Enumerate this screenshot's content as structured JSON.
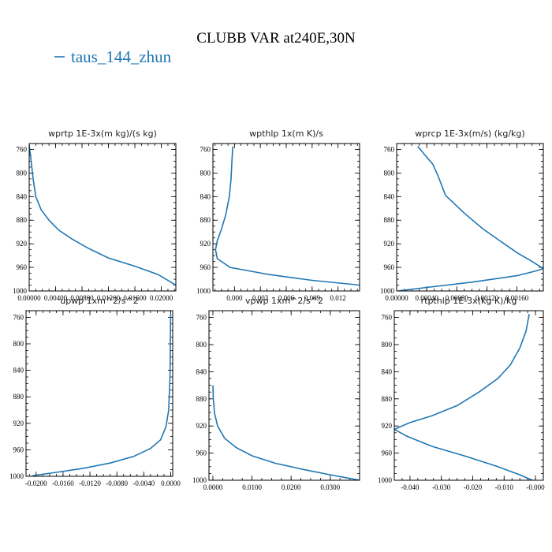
{
  "figure": {
    "title": "CLUBB VAR at240E,30N",
    "legend": [
      {
        "label": "taus_144_zhun",
        "color": "#1f77b4"
      }
    ]
  },
  "chart_data": [
    {
      "type": "line",
      "title": "wprtp  1E-3x(m kg)/(s kg)",
      "xlim": [
        0,
        0.0222
      ],
      "ylim": [
        1000,
        750
      ],
      "xticks": [
        0,
        0.004,
        0.008,
        0.012,
        0.016,
        0.02
      ],
      "xticklabels": [
        "0.00000",
        "0.00400",
        "0.00800",
        "0.01200",
        "0.01600",
        "0.02000"
      ],
      "yticks": [
        760,
        800,
        840,
        880,
        920,
        960,
        1000
      ],
      "yticklabels": [
        "760",
        "800",
        "840",
        "880",
        "920",
        "960",
        "1000"
      ],
      "series": [
        {
          "color": "#1f77b4",
          "x": [
            0.0,
            0.0003,
            0.0006,
            0.001,
            0.0018,
            0.003,
            0.0045,
            0.0065,
            0.009,
            0.012,
            0.016,
            0.0195,
            0.0222
          ],
          "y": [
            752,
            780,
            810,
            840,
            862,
            880,
            897,
            912,
            928,
            944,
            958,
            972,
            990
          ]
        }
      ]
    },
    {
      "type": "line",
      "title": "wpthlp  1x(m K)/s",
      "xlim": [
        -0.0025,
        0.0145
      ],
      "ylim": [
        1000,
        750
      ],
      "xticks": [
        0,
        0.003,
        0.006,
        0.009,
        0.012
      ],
      "xticklabels": [
        "0.000",
        "0.003",
        "0.006",
        "0.009",
        "0.012"
      ],
      "yticks": [
        760,
        800,
        840,
        880,
        920,
        960,
        1000
      ],
      "yticklabels": [
        "760",
        "800",
        "840",
        "880",
        "920",
        "960",
        "1000"
      ],
      "series": [
        {
          "color": "#1f77b4",
          "x": [
            -0.0002,
            -0.0003,
            -0.0004,
            -0.0006,
            -0.001,
            -0.0015,
            -0.002,
            -0.0022,
            -0.002,
            -0.0005,
            0.004,
            0.009,
            0.0145
          ],
          "y": [
            755,
            780,
            810,
            840,
            870,
            895,
            915,
            930,
            945,
            960,
            972,
            982,
            990
          ]
        }
      ]
    },
    {
      "type": "line",
      "title": "wprcp  1E-3x(m/s) (kg/kg)",
      "xlim": [
        0,
        0.00195
      ],
      "ylim": [
        1000,
        750
      ],
      "xticks": [
        0,
        0.0004,
        0.0008,
        0.0012,
        0.0016
      ],
      "xticklabels": [
        "0.00000",
        "0.00040",
        "0.00080",
        "0.00120",
        "0.00160"
      ],
      "yticks": [
        760,
        800,
        840,
        880,
        920,
        960,
        1000
      ],
      "yticklabels": [
        "760",
        "800",
        "840",
        "880",
        "920",
        "960",
        "1000"
      ],
      "series": [
        {
          "color": "#1f77b4",
          "x": [
            0.00028,
            0.00038,
            0.00048,
            0.00055,
            0.00065,
            0.0009,
            0.00115,
            0.00135,
            0.0016,
            0.0018,
            0.00195,
            0.00185,
            0.0016,
            0.001,
            0.0004,
            2e-05
          ],
          "y": [
            755,
            770,
            785,
            805,
            838,
            868,
            895,
            913,
            935,
            950,
            962,
            966,
            974,
            985,
            994,
            1000
          ]
        }
      ]
    },
    {
      "type": "line",
      "title": "upwp  1xm^2/s^2",
      "xlim": [
        -0.0215,
        0.0003
      ],
      "ylim": [
        1000,
        750
      ],
      "xticks": [
        -0.02,
        -0.016,
        -0.012,
        -0.008,
        -0.004,
        0
      ],
      "xticklabels": [
        "-0.0200",
        "-0.0160",
        "-0.0120",
        "-0.0080",
        "-0.0040",
        "0.0000"
      ],
      "yticks": [
        760,
        800,
        840,
        880,
        920,
        960,
        1000
      ],
      "yticklabels": [
        "760",
        "800",
        "840",
        "880",
        "920",
        "960",
        "1000"
      ],
      "series": [
        {
          "color": "#1f77b4",
          "x": [
            0.0,
            -5e-05,
            -0.0001,
            -0.0003,
            -0.0007,
            -0.0015,
            -0.003,
            -0.0055,
            -0.009,
            -0.013,
            -0.017,
            -0.0205
          ],
          "y": [
            755,
            800,
            850,
            900,
            925,
            945,
            958,
            970,
            980,
            988,
            994,
            999
          ]
        }
      ]
    },
    {
      "type": "line",
      "title": "vpwp  1xm^2/s^2",
      "xlim": [
        -0.001,
        0.0375
      ],
      "ylim": [
        1000,
        750
      ],
      "xticks": [
        0,
        0.01,
        0.02,
        0.03
      ],
      "xticklabels": [
        "0.0000",
        "0.0100",
        "0.0200",
        "0.0300"
      ],
      "yticks": [
        760,
        800,
        840,
        880,
        920,
        960,
        1000
      ],
      "yticklabels": [
        "760",
        "800",
        "840",
        "880",
        "920",
        "960",
        "1000"
      ],
      "series": [
        {
          "color": "#1f77b4",
          "x": [
            0.0,
            0.0001,
            0.0004,
            0.0012,
            0.003,
            0.006,
            0.01,
            0.016,
            0.023,
            0.03,
            0.0375
          ],
          "y": [
            860,
            880,
            900,
            920,
            938,
            952,
            964,
            975,
            984,
            992,
            1000
          ]
        }
      ]
    },
    {
      "type": "line",
      "title": "rtpthlp  1E-3x(kg K)/kg",
      "xlim": [
        -0.045,
        0.0025
      ],
      "ylim": [
        1000,
        750
      ],
      "xticks": [
        -0.04,
        -0.03,
        -0.02,
        -0.01,
        0
      ],
      "xticklabels": [
        "-0.040",
        "-0.030",
        "-0.020",
        "-0.010",
        "-0.000"
      ],
      "yticks": [
        760,
        800,
        840,
        880,
        920,
        960,
        1000
      ],
      "yticklabels": [
        "760",
        "800",
        "840",
        "880",
        "920",
        "960",
        "1000"
      ],
      "series": [
        {
          "color": "#1f77b4",
          "x": [
            -0.002,
            -0.003,
            -0.005,
            -0.008,
            -0.012,
            -0.018,
            -0.025,
            -0.033,
            -0.04,
            -0.045,
            -0.041,
            -0.033,
            -0.022,
            -0.012,
            -0.005,
            -0.001
          ],
          "y": [
            755,
            780,
            805,
            830,
            850,
            870,
            890,
            905,
            915,
            925,
            935,
            950,
            965,
            980,
            992,
            1000
          ]
        }
      ]
    }
  ]
}
